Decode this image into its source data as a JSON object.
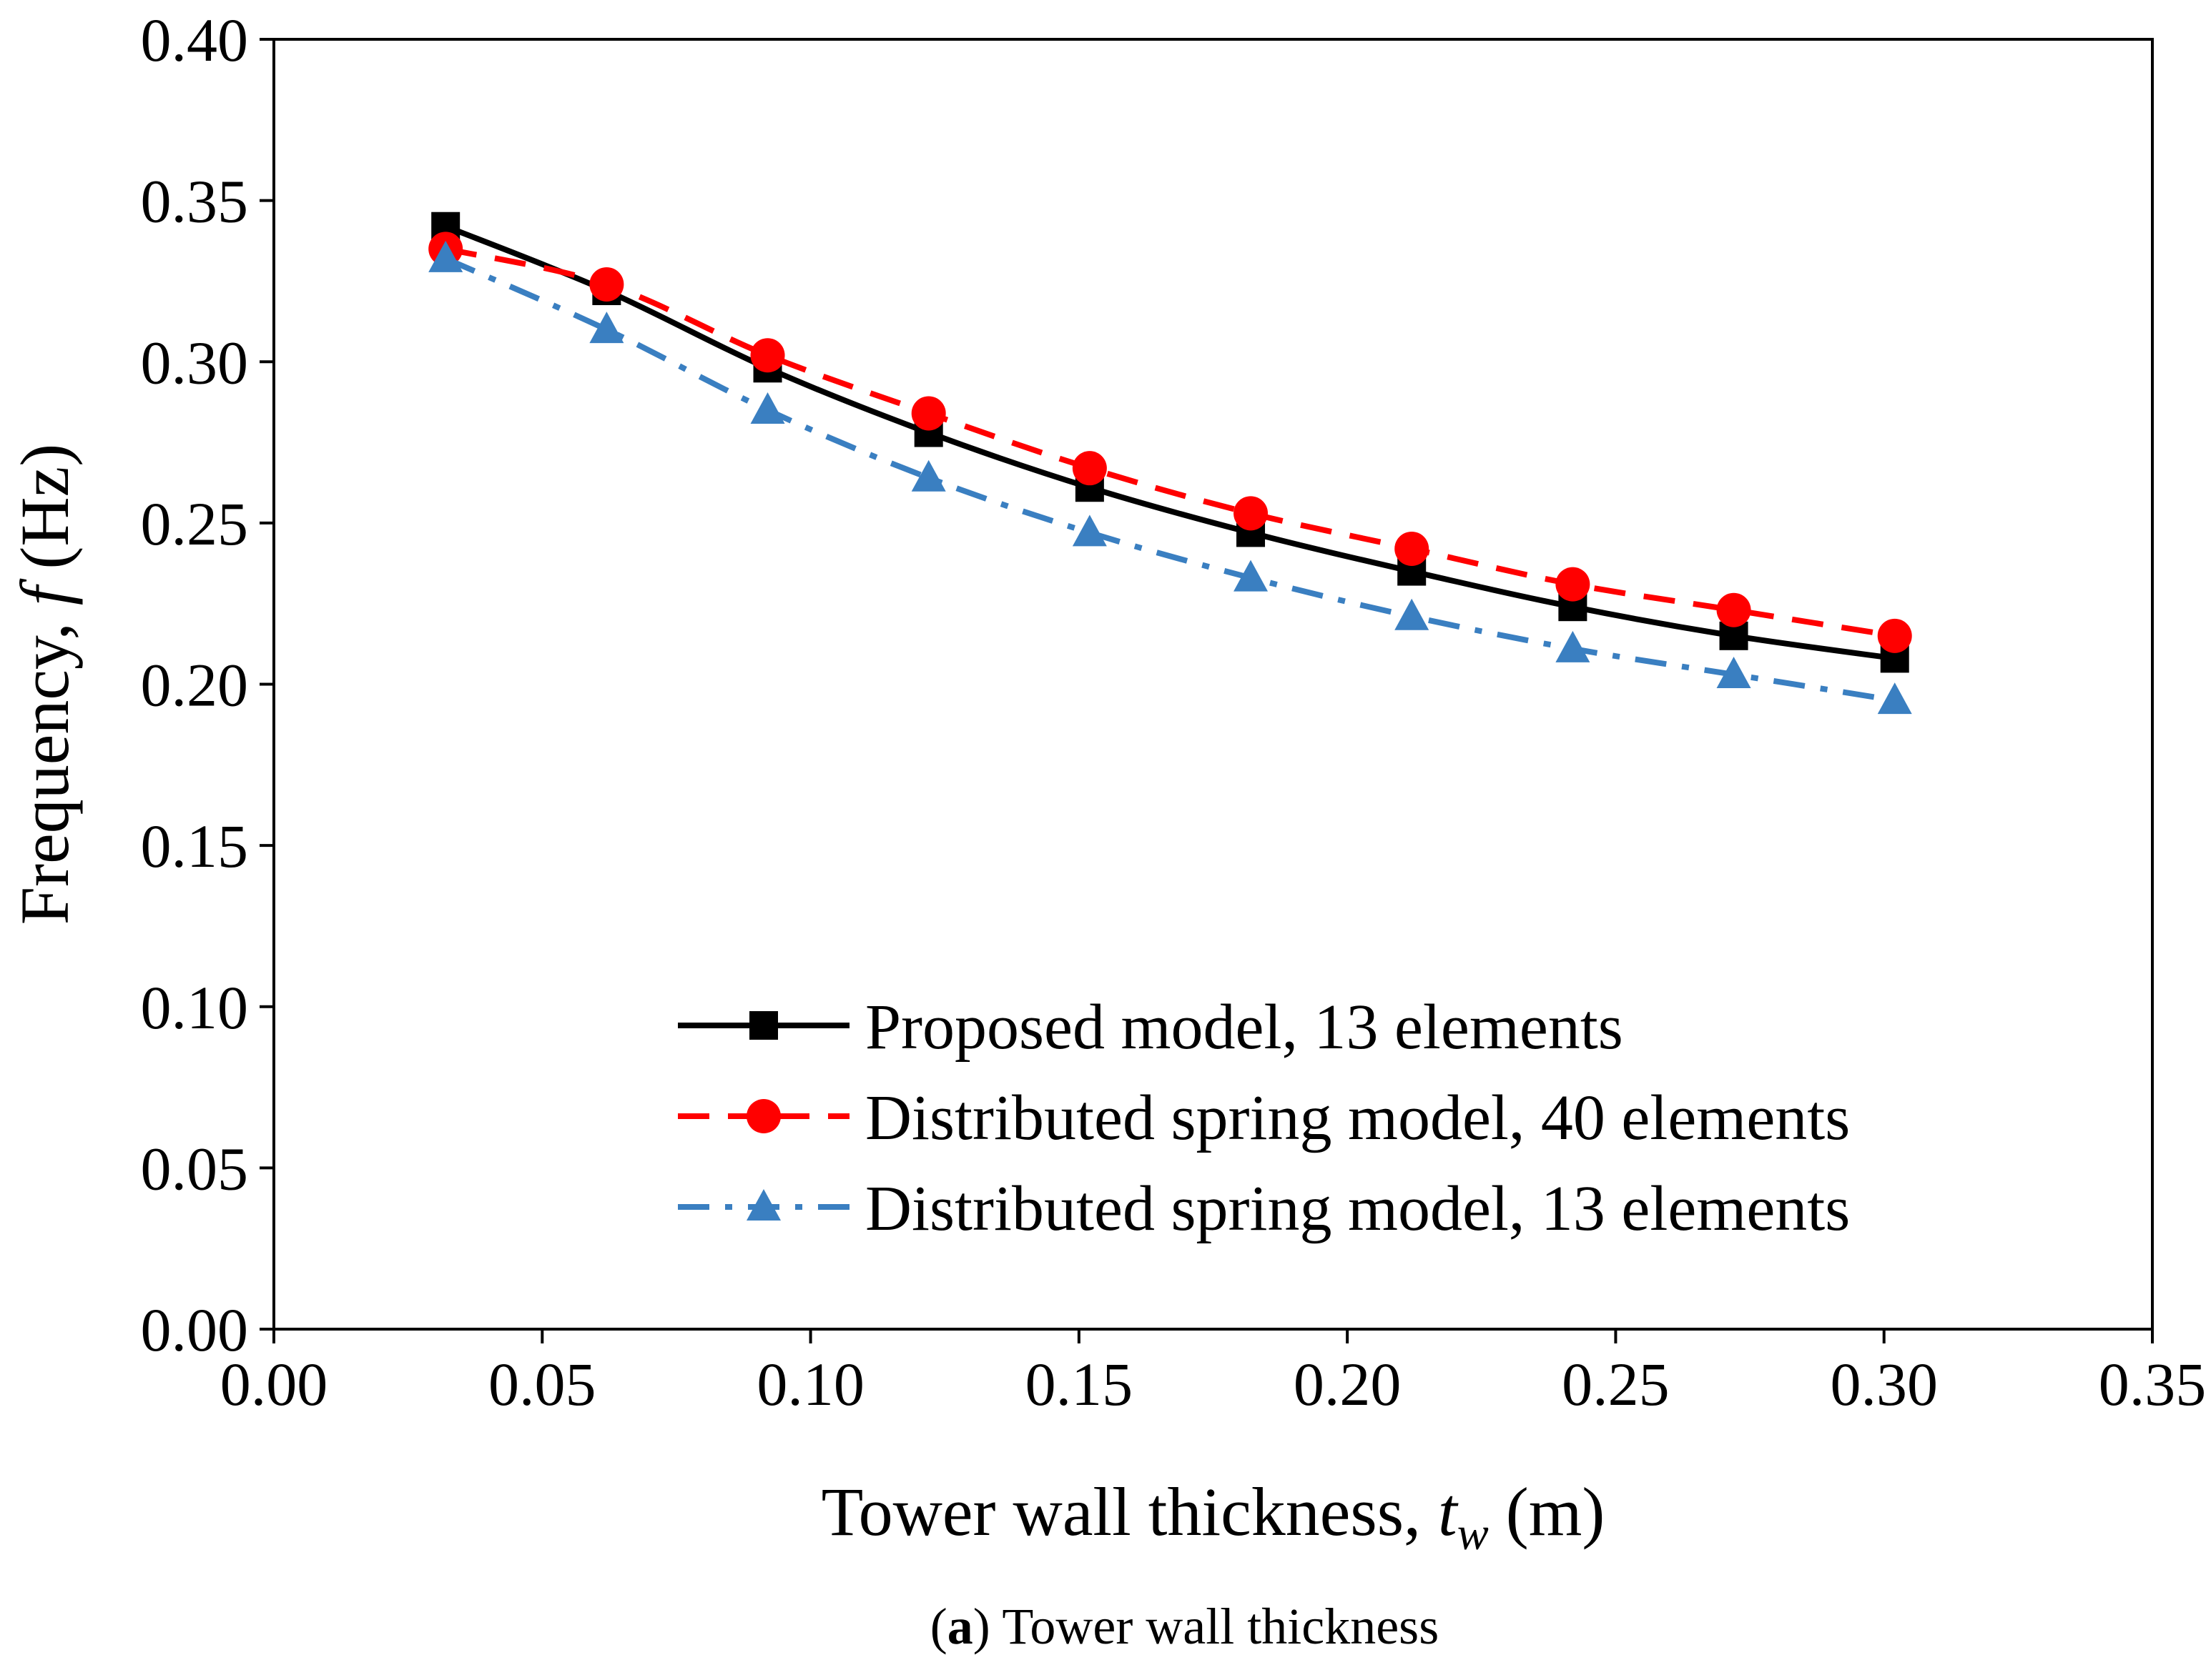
{
  "chart_data": {
    "type": "line",
    "title": "",
    "xlabel": {
      "prefix": "Tower wall thickness, ",
      "var": "t",
      "sub": "w",
      "suffix": " (m)"
    },
    "ylabel": {
      "prefix": "Frequency, ",
      "var": "f",
      "suffix": " (Hz)"
    },
    "xlim": [
      0.0,
      0.35
    ],
    "ylim": [
      0.0,
      0.4
    ],
    "xticks": [
      "0.00",
      "0.05",
      "0.10",
      "0.15",
      "0.20",
      "0.25",
      "0.30",
      "0.35"
    ],
    "yticks": [
      "0.00",
      "0.05",
      "0.10",
      "0.15",
      "0.20",
      "0.25",
      "0.30",
      "0.35",
      "0.40"
    ],
    "grid": false,
    "legend_position": "lower-right",
    "x": [
      0.032,
      0.062,
      0.092,
      0.122,
      0.152,
      0.182,
      0.212,
      0.242,
      0.272,
      0.302
    ],
    "series": [
      {
        "name": "Proposed model, 13 elements",
        "color": "#000000",
        "linestyle": "solid",
        "marker": "square",
        "values": [
          0.342,
          0.322,
          0.298,
          0.278,
          0.261,
          0.247,
          0.235,
          0.224,
          0.215,
          0.208
        ]
      },
      {
        "name": "Distributed spring model, 40 elements",
        "color": "#ff0000",
        "linestyle": "dashed",
        "marker": "circle",
        "values": [
          0.335,
          0.324,
          0.302,
          0.284,
          0.267,
          0.253,
          0.242,
          0.231,
          0.223,
          0.215
        ]
      },
      {
        "name": "Distributed spring model, 13 elements",
        "color": "#3a7fc1",
        "linestyle": "dashdot",
        "marker": "triangle",
        "values": [
          0.332,
          0.31,
          0.285,
          0.264,
          0.247,
          0.233,
          0.221,
          0.211,
          0.203,
          0.195
        ]
      }
    ],
    "caption": {
      "label": "a",
      "open": "(",
      "close": ")",
      "text": " Tower wall thickness"
    }
  }
}
